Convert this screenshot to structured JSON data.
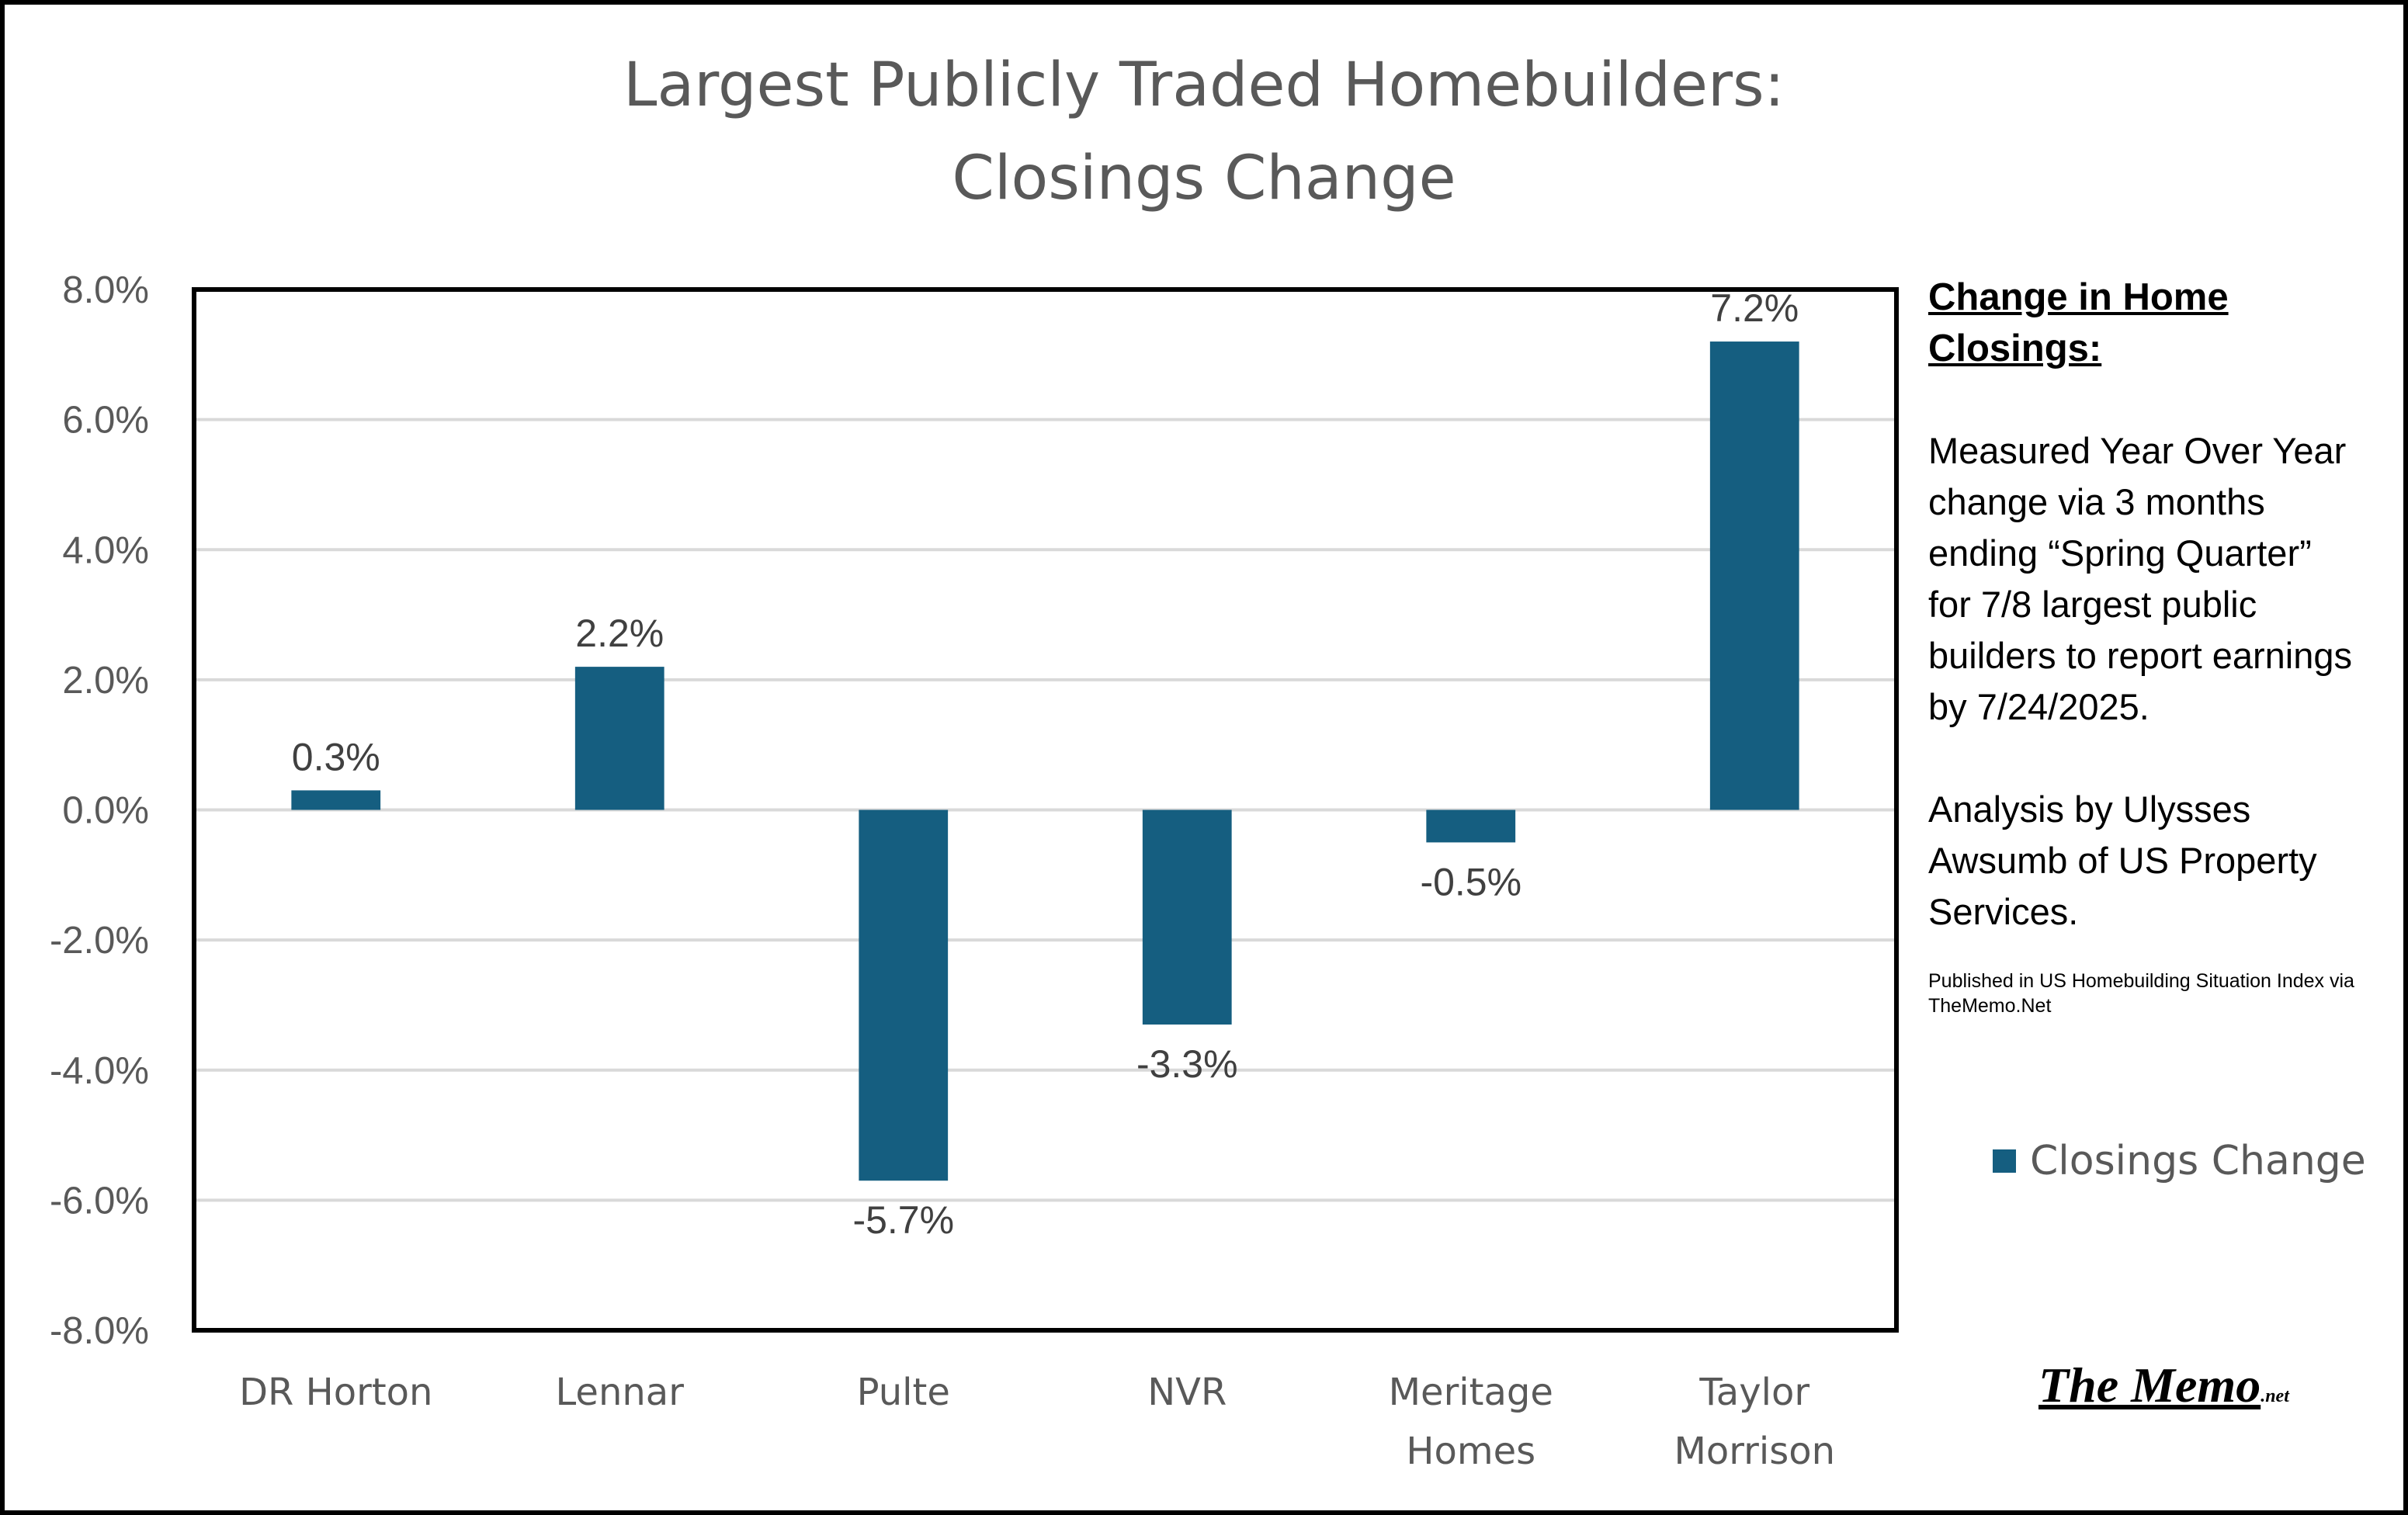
{
  "chart_data": {
    "type": "bar",
    "title_lines": [
      "Largest Publicly Traded Homebuilders:",
      "Closings Change"
    ],
    "categories": [
      [
        "DR Horton"
      ],
      [
        "Lennar"
      ],
      [
        "Pulte"
      ],
      [
        "NVR"
      ],
      [
        "Meritage",
        "Homes"
      ],
      [
        "Taylor",
        "Morrison"
      ]
    ],
    "series": [
      {
        "name": "Closings Change",
        "values": [
          0.3,
          2.2,
          -5.7,
          -3.3,
          -0.5,
          7.2
        ]
      }
    ],
    "data_labels": [
      "0.3%",
      "2.2%",
      "-5.7%",
      "-3.3%",
      "-0.5%",
      "7.2%"
    ],
    "ylim": [
      -8.0,
      8.0
    ],
    "yticks": [
      8.0,
      6.0,
      4.0,
      2.0,
      0.0,
      -2.0,
      -4.0,
      -6.0,
      -8.0
    ],
    "ytick_labels": [
      "8.0%",
      "6.0%",
      "4.0%",
      "2.0%",
      "0.0%",
      "-2.0%",
      "-4.0%",
      "-6.0%",
      "-8.0%"
    ],
    "xlabel": "",
    "ylabel": "",
    "grid": true,
    "legend": "right",
    "bar_color": "#155E80"
  },
  "side": {
    "heading": "Change in Home Closings:",
    "body": "Measured Year Over Year change via 3 months ending “Spring Quarter” for 7/8 largest public builders to report earnings by 7/24/2025.",
    "analysis": "Analysis by Ulysses Awsumb of US Property Services.",
    "published": "Published in US Homebuilding Situation Index via TheMemo.Net"
  },
  "legend": {
    "label": "Closings Change",
    "color": "#155E80"
  },
  "logo": {
    "text": "The Memo",
    "suffix": ".net"
  }
}
